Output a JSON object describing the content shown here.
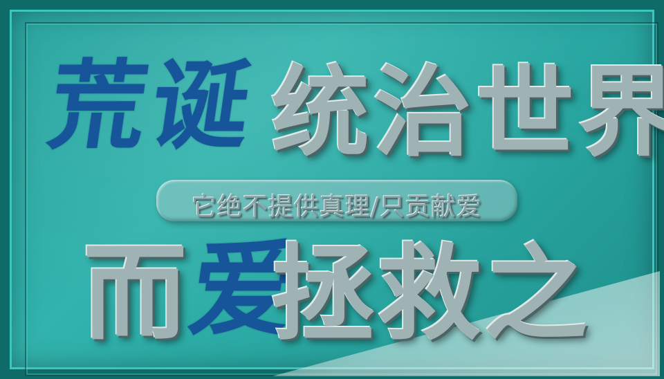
{
  "line1": {
    "blue_text": "荒诞",
    "silver_text": "统治世界"
  },
  "subtitle": "它绝不提供真理/只贡献爱",
  "line3": {
    "silver_prefix": "而",
    "blue_text": "爱",
    "silver_suffix": "拯救之"
  },
  "colors": {
    "plaque_teal": "#2aa8a3",
    "frame_dark": "#0e6b67",
    "ink_blue": "#17559a",
    "embossed_silver": "#9fb3b5"
  }
}
